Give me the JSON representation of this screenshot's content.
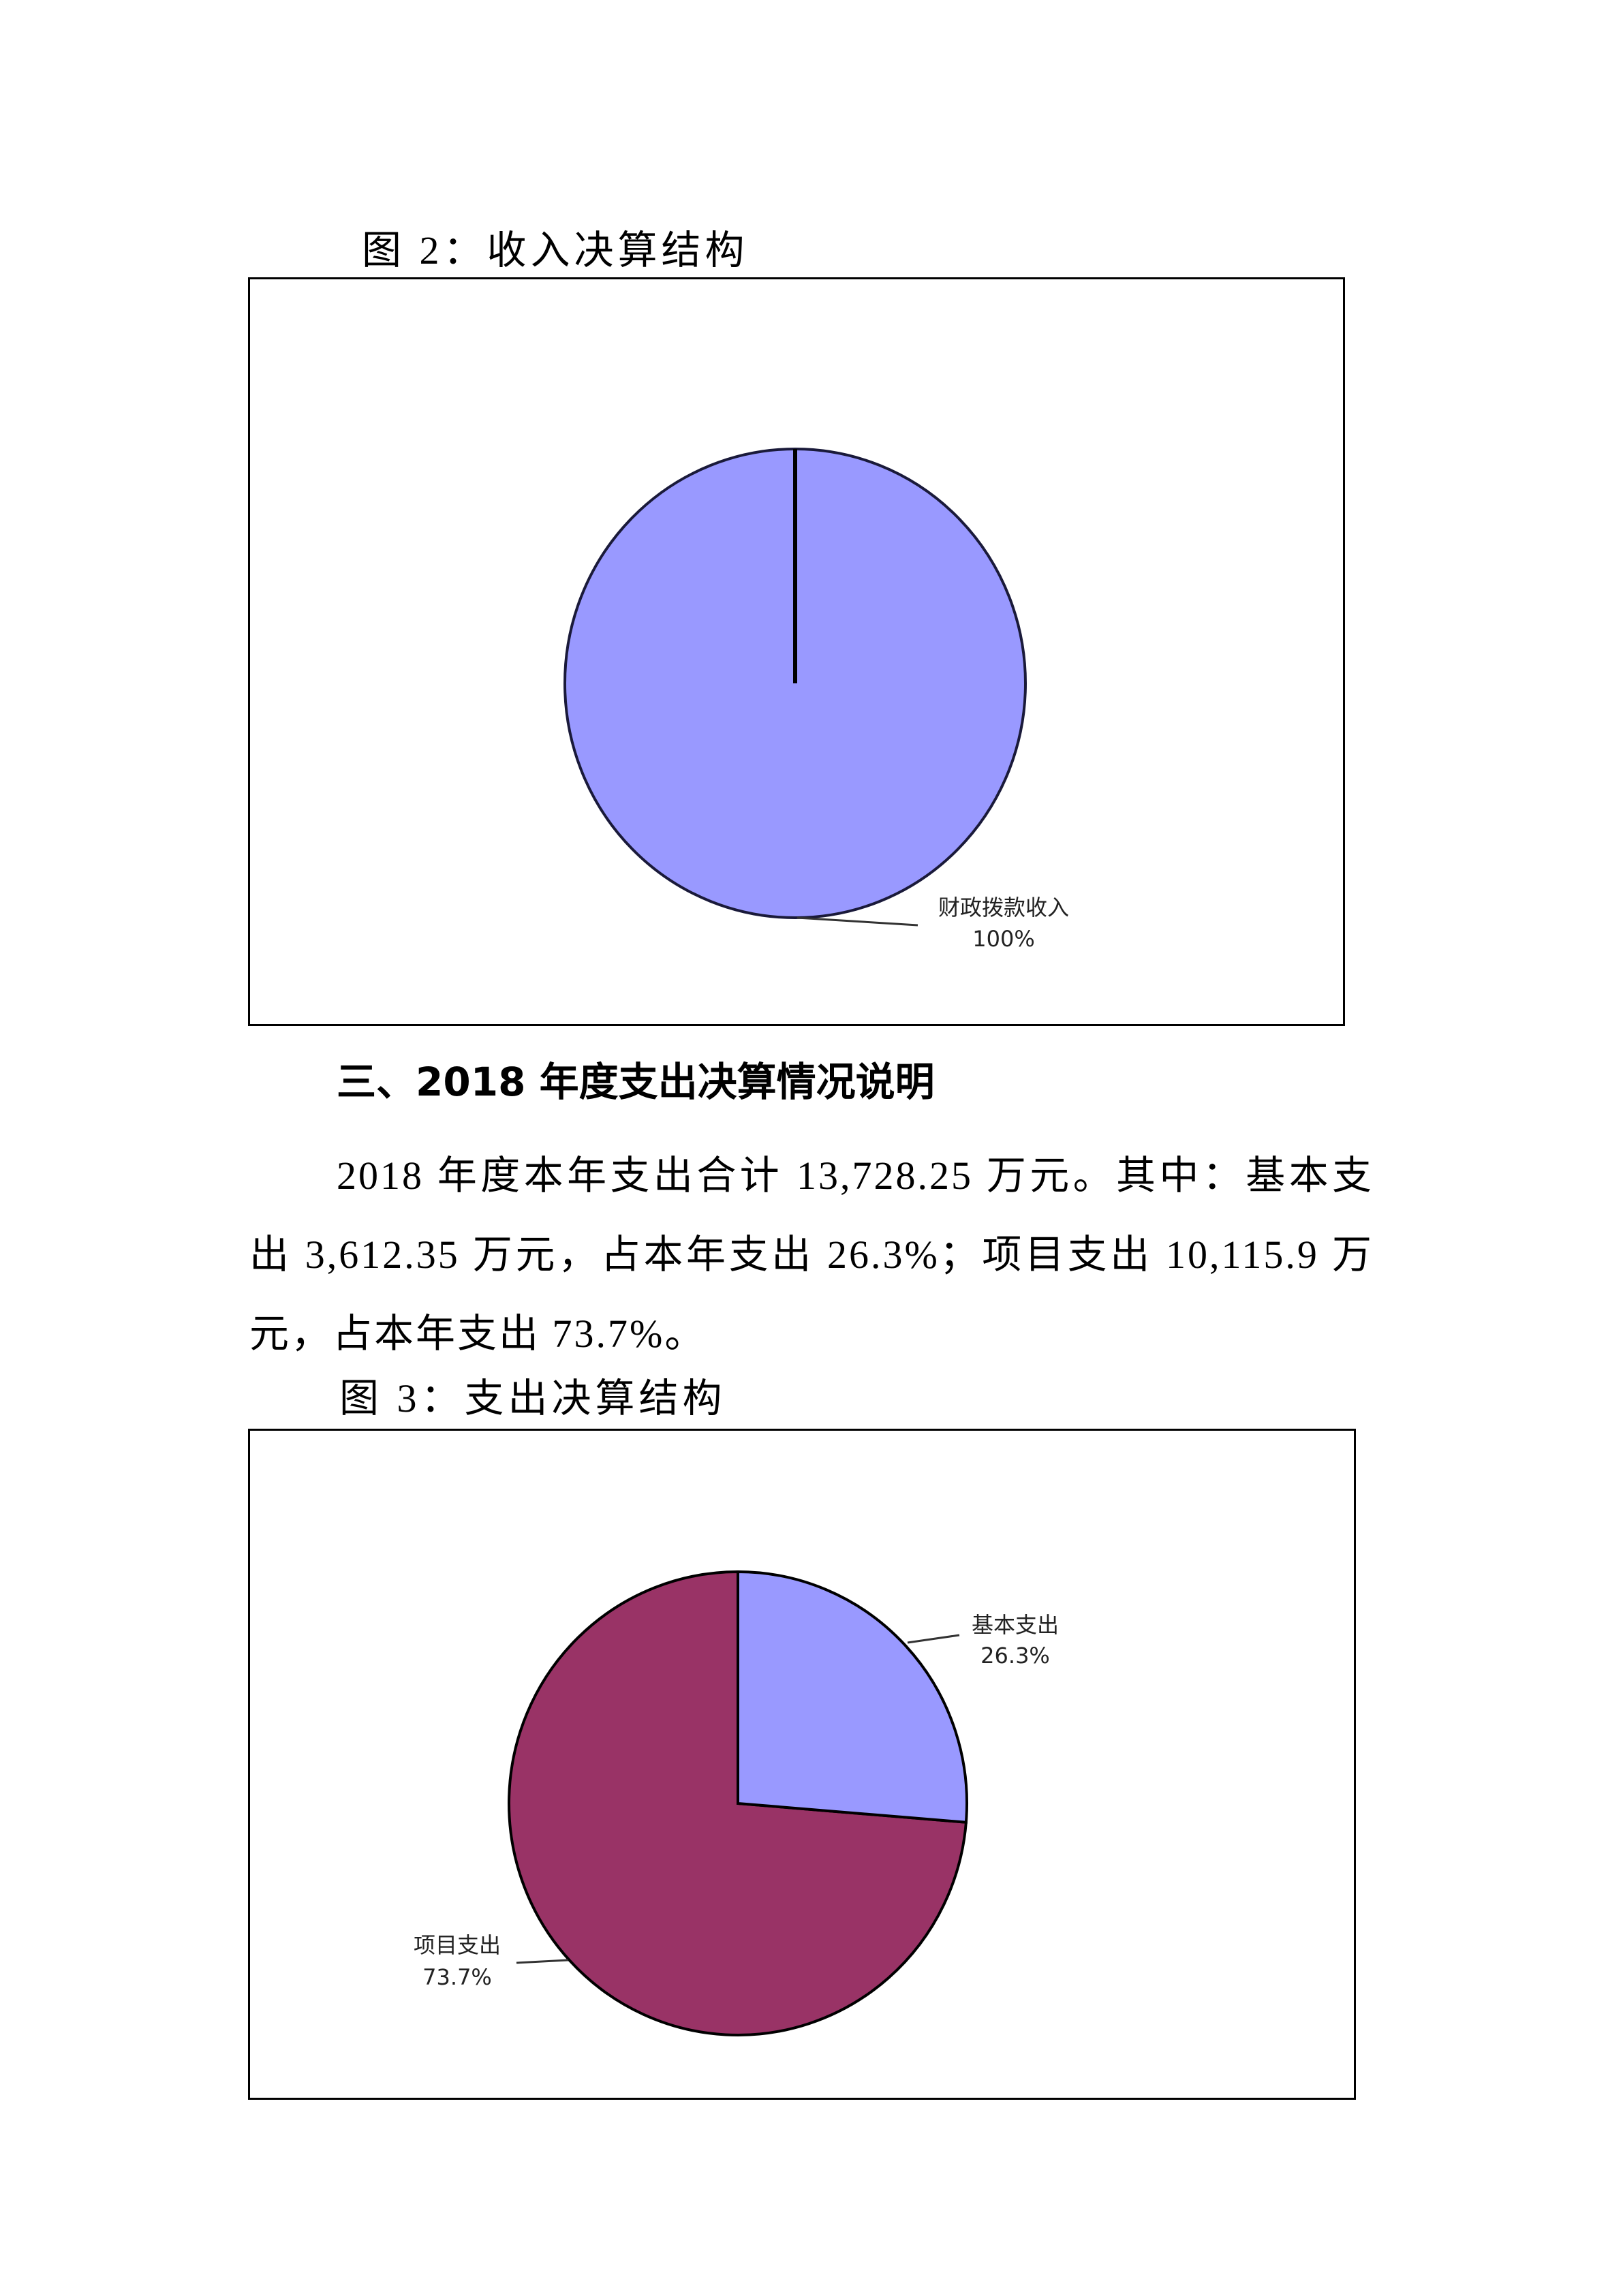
{
  "figure2": {
    "caption": "图 2：收入决算结构",
    "chart_data": {
      "type": "pie",
      "categories": [
        "财政拨款收入"
      ],
      "values": [
        100
      ],
      "data_labels": [
        "100%"
      ],
      "colors": [
        "#9999FF"
      ]
    }
  },
  "section3": {
    "heading": "三、2018 年度支出决算情况说明",
    "paragraph": "2018 年度本年支出合计 13,728.25 万元。其中：基本支出 3,612.35 万元，占本年支出 26.3%；项目支出 10,115.9 万元，占本年支出 73.7%。"
  },
  "figure3": {
    "caption": "图 3：支出决算结构",
    "chart_data": {
      "type": "pie",
      "categories": [
        "基本支出",
        "项目支出"
      ],
      "values": [
        26.3,
        73.7
      ],
      "data_labels": [
        "26.3%",
        "73.7%"
      ],
      "colors": [
        "#9999FF",
        "#993366"
      ]
    }
  }
}
